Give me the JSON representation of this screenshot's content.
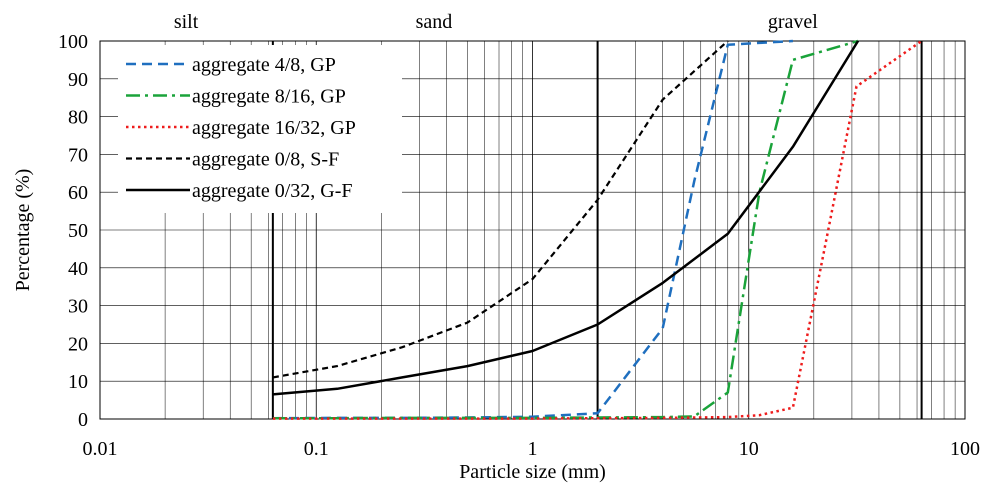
{
  "chart_data": {
    "type": "line",
    "title": "",
    "xlabel": "Particle size (mm)",
    "ylabel": "Percentage (%)",
    "xscale": "log",
    "xlim": [
      0.01,
      100
    ],
    "ylim": [
      0,
      100
    ],
    "x_ticks": [
      {
        "value": 0.01,
        "label": "0.01"
      },
      {
        "value": 0.1,
        "label": "0.1"
      },
      {
        "value": 1,
        "label": "1"
      },
      {
        "value": 10,
        "label": "10"
      },
      {
        "value": 100,
        "label": "100"
      }
    ],
    "y_ticks": [
      {
        "value": 0,
        "label": "0"
      },
      {
        "value": 10,
        "label": "10"
      },
      {
        "value": 20,
        "label": "20"
      },
      {
        "value": 30,
        "label": "30"
      },
      {
        "value": 40,
        "label": "40"
      },
      {
        "value": 50,
        "label": "50"
      },
      {
        "value": 60,
        "label": "60"
      },
      {
        "value": 70,
        "label": "70"
      },
      {
        "value": 80,
        "label": "80"
      },
      {
        "value": 90,
        "label": "90"
      },
      {
        "value": 100,
        "label": "100"
      }
    ],
    "grid": true,
    "legend_position": "top-left",
    "zone_boundaries": [
      0.063,
      2,
      63
    ],
    "zones": [
      {
        "label": "silt",
        "x": 0.025
      },
      {
        "label": "sand",
        "x": 0.35
      },
      {
        "label": "gravel",
        "x": 16
      }
    ],
    "series": [
      {
        "name": "aggregate 4/8, GP",
        "color": "#1f6fbf",
        "dash": "dashed",
        "x": [
          0.063,
          0.125,
          0.25,
          0.5,
          1,
          2,
          4,
          5.6,
          8,
          11.2,
          16
        ],
        "y": [
          0.2,
          0.3,
          0.3,
          0.4,
          0.6,
          1.5,
          24,
          63,
          99,
          99.5,
          100
        ]
      },
      {
        "name": "aggregate 8/16, GP",
        "color": "#1aa33a",
        "dash": "dashdot",
        "x": [
          0.063,
          0.125,
          0.25,
          0.5,
          1,
          2,
          4,
          5.6,
          8,
          11.2,
          16,
          32
        ],
        "y": [
          0.2,
          0.2,
          0.3,
          0.3,
          0.3,
          0.4,
          0.5,
          0.7,
          7,
          60,
          95,
          100
        ]
      },
      {
        "name": "aggregate 16/32, GP",
        "color": "#ee1c1c",
        "dash": "dotted",
        "x": [
          0.063,
          0.125,
          0.25,
          0.5,
          1,
          2,
          4,
          8,
          11.2,
          16,
          22.4,
          31.5,
          63
        ],
        "y": [
          0.1,
          0.1,
          0.1,
          0.1,
          0.1,
          0.2,
          0.3,
          0.5,
          1,
          3,
          45,
          88,
          100
        ]
      },
      {
        "name": "aggregate 0/8, S-F",
        "color": "#000000",
        "dash": "shortdash",
        "x": [
          0.063,
          0.125,
          0.25,
          0.5,
          1,
          2,
          4,
          8
        ],
        "y": [
          11,
          14,
          19,
          25.5,
          37,
          58,
          84.5,
          100
        ]
      },
      {
        "name": "aggregate 0/32, G-F",
        "color": "#000000",
        "dash": "solid",
        "x": [
          0.063,
          0.125,
          0.25,
          0.5,
          1,
          2,
          4,
          8,
          16,
          32
        ],
        "y": [
          6.5,
          8,
          11,
          14,
          18,
          25,
          36,
          49,
          72,
          100
        ]
      }
    ]
  }
}
